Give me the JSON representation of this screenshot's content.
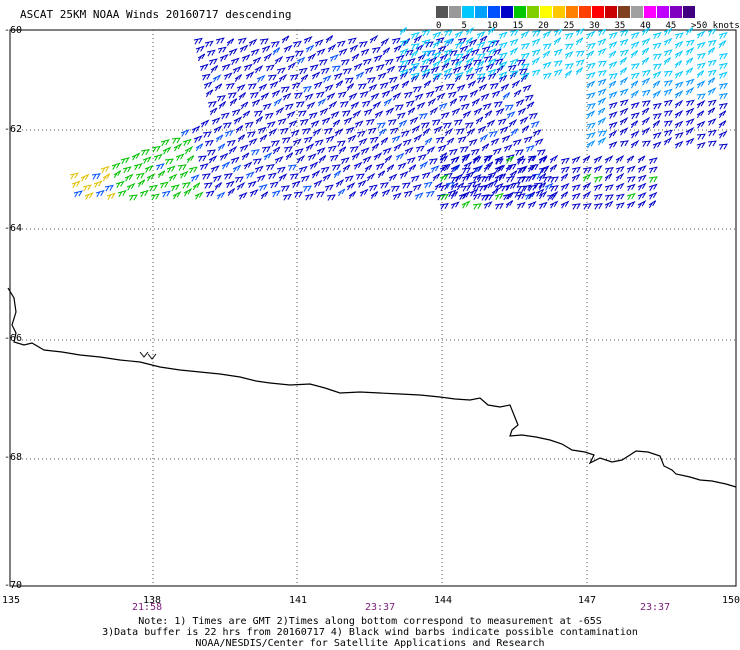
{
  "title": "ASCAT 25KM NOAA Winds 20160717 descending",
  "legend": {
    "colors": [
      "#555555",
      "#999999",
      "#00c8ff",
      "#00a0ff",
      "#0050ff",
      "#0000c8",
      "#00c800",
      "#80d000",
      "#ffff00",
      "#ffc800",
      "#ff8000",
      "#ff4000",
      "#ff0000",
      "#c80000",
      "#804020",
      "#a0a0a0",
      "#ff00ff",
      "#c000ff",
      "#8000c0",
      "#400080"
    ],
    "ticks": [
      "0",
      "5",
      "10",
      "15",
      "20",
      "25",
      "30",
      "35",
      "40",
      "45",
      ">50 knots"
    ]
  },
  "axes": {
    "lat_labels": [
      "-60",
      "-62",
      "-64",
      "-66",
      "-68",
      "-70"
    ],
    "lon_labels": [
      "135",
      "138",
      "141",
      "144",
      "147",
      "150"
    ],
    "time_labels": [
      "21:58",
      "23:37",
      "23:37"
    ]
  },
  "notes": [
    "Note: 1) Times are GMT 2)Times along bottom correspond to measurement at -65S",
    "3)Data buffer is 22 hrs from 20160717 4) Black wind barbs indicate possible contamination",
    "NOAA/NESDIS/Center for Satellite Applications and Research"
  ]
}
